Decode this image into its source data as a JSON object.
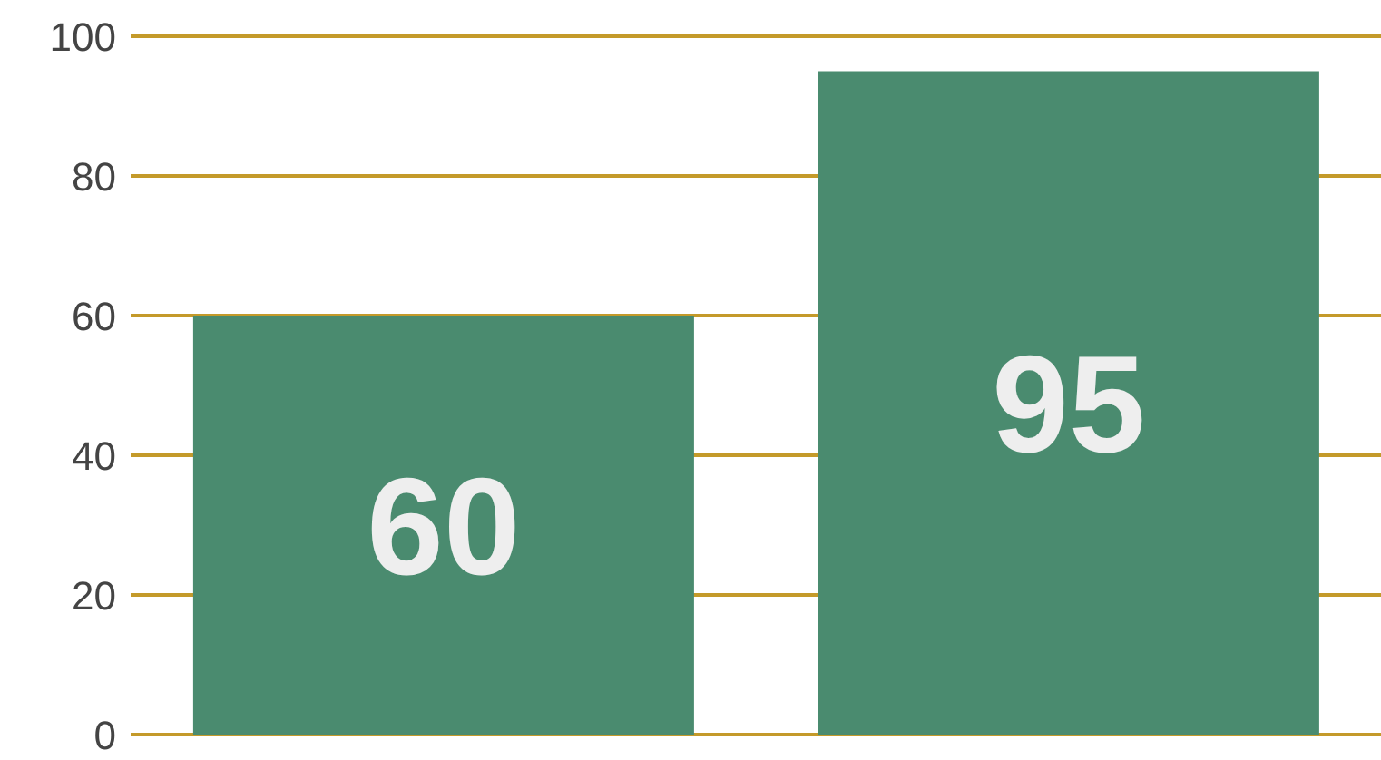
{
  "chart_data": {
    "type": "bar",
    "categories": [
      null,
      null
    ],
    "values": [
      60,
      95
    ],
    "color": "#4a8b6f",
    "ylim": [
      0,
      100
    ],
    "yticks": [
      0,
      20,
      40,
      60,
      80,
      100
    ],
    "grid": "y",
    "data_labels": true,
    "tick_labels": "y"
  }
}
